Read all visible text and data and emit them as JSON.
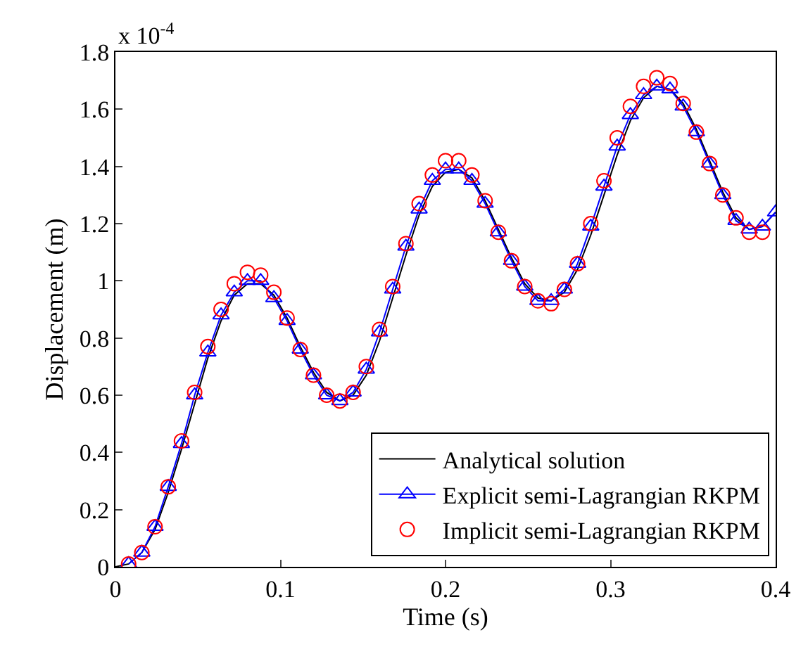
{
  "chart_data": {
    "type": "line",
    "xlabel": "Time (s)",
    "ylabel": "Displacement (m)",
    "annotations": [
      "x 10$^{-4}$"
    ],
    "xlim": [
      0,
      0.4
    ],
    "xticks": [
      0,
      0.1,
      0.2,
      0.3,
      0.4
    ],
    "ylim": [
      0,
      1.8
    ],
    "yticks": [
      0,
      0.2,
      0.4,
      0.6,
      0.8,
      1,
      1.2,
      1.4,
      1.6,
      1.8
    ],
    "legend": "bottom right",
    "series": [
      {
        "name": "Analytical solution",
        "color": "#000000",
        "marker": "none",
        "line_style": "solid",
        "x": [
          0,
          0.008,
          0.016,
          0.024,
          0.032,
          0.04,
          0.048,
          0.056,
          0.064,
          0.072,
          0.08,
          0.088,
          0.096,
          0.104,
          0.112,
          0.12,
          0.128,
          0.136,
          0.144,
          0.152,
          0.16,
          0.168,
          0.176,
          0.184,
          0.192,
          0.2,
          0.208,
          0.216,
          0.224,
          0.232,
          0.24,
          0.248,
          0.256,
          0.264,
          0.272,
          0.28,
          0.288,
          0.296,
          0.304,
          0.312,
          0.32,
          0.328,
          0.336,
          0.344,
          0.352,
          0.36,
          0.368,
          0.376,
          0.384,
          0.392,
          0.4
        ],
        "values": [
          0,
          0.01,
          0.05,
          0.13,
          0.26,
          0.41,
          0.57,
          0.73,
          0.86,
          0.95,
          0.99,
          0.99,
          0.95,
          0.87,
          0.77,
          0.68,
          0.61,
          0.58,
          0.6,
          0.67,
          0.79,
          0.94,
          1.09,
          1.23,
          1.33,
          1.38,
          1.39,
          1.36,
          1.28,
          1.18,
          1.08,
          0.99,
          0.94,
          0.93,
          0.96,
          1.04,
          1.16,
          1.3,
          1.44,
          1.56,
          1.64,
          1.68,
          1.67,
          1.62,
          1.53,
          1.42,
          1.31,
          1.22,
          1.18,
          1.19,
          1.24
        ]
      },
      {
        "name": "Explicit semi-Lagrangian RKPM",
        "color": "#0000ff",
        "marker": "triangle",
        "line_style": "solid",
        "x": [
          0.008,
          0.016,
          0.024,
          0.032,
          0.04,
          0.048,
          0.056,
          0.064,
          0.072,
          0.08,
          0.088,
          0.096,
          0.104,
          0.112,
          0.12,
          0.128,
          0.136,
          0.144,
          0.152,
          0.16,
          0.168,
          0.176,
          0.184,
          0.192,
          0.2,
          0.208,
          0.216,
          0.224,
          0.232,
          0.24,
          0.248,
          0.256,
          0.264,
          0.272,
          0.28,
          0.288,
          0.296,
          0.304,
          0.312,
          0.32,
          0.328,
          0.336,
          0.344,
          0.352,
          0.36,
          0.368,
          0.376,
          0.384,
          0.392,
          0.4
        ],
        "values": [
          0.01,
          0.05,
          0.14,
          0.28,
          0.43,
          0.6,
          0.75,
          0.88,
          0.96,
          1.0,
          1.0,
          0.94,
          0.86,
          0.76,
          0.67,
          0.6,
          0.58,
          0.61,
          0.69,
          0.82,
          0.97,
          1.12,
          1.25,
          1.35,
          1.39,
          1.39,
          1.35,
          1.27,
          1.17,
          1.07,
          0.98,
          0.93,
          0.93,
          0.97,
          1.06,
          1.19,
          1.33,
          1.47,
          1.58,
          1.65,
          1.68,
          1.67,
          1.61,
          1.52,
          1.41,
          1.3,
          1.21,
          1.18,
          1.19,
          1.24
        ]
      },
      {
        "name": "Implicit semi-Lagrangian RKPM",
        "type": "scatter",
        "color": "#ff0000",
        "marker": "circle",
        "x": [
          0.008,
          0.016,
          0.024,
          0.032,
          0.04,
          0.048,
          0.056,
          0.064,
          0.072,
          0.08,
          0.088,
          0.096,
          0.104,
          0.112,
          0.12,
          0.128,
          0.136,
          0.144,
          0.152,
          0.16,
          0.168,
          0.176,
          0.184,
          0.192,
          0.2,
          0.208,
          0.216,
          0.224,
          0.232,
          0.24,
          0.248,
          0.256,
          0.264,
          0.272,
          0.28,
          0.288,
          0.296,
          0.304,
          0.312,
          0.32,
          0.328,
          0.336,
          0.344,
          0.352,
          0.36,
          0.368,
          0.376,
          0.384,
          0.392
        ],
        "values": [
          0.01,
          0.05,
          0.14,
          0.28,
          0.44,
          0.61,
          0.77,
          0.9,
          0.99,
          1.03,
          1.02,
          0.96,
          0.87,
          0.76,
          0.67,
          0.6,
          0.58,
          0.61,
          0.7,
          0.83,
          0.98,
          1.13,
          1.27,
          1.37,
          1.42,
          1.42,
          1.37,
          1.28,
          1.17,
          1.07,
          0.98,
          0.93,
          0.92,
          0.97,
          1.06,
          1.2,
          1.35,
          1.5,
          1.61,
          1.68,
          1.71,
          1.69,
          1.62,
          1.52,
          1.41,
          1.3,
          1.22,
          1.17,
          1.17
        ]
      }
    ]
  }
}
